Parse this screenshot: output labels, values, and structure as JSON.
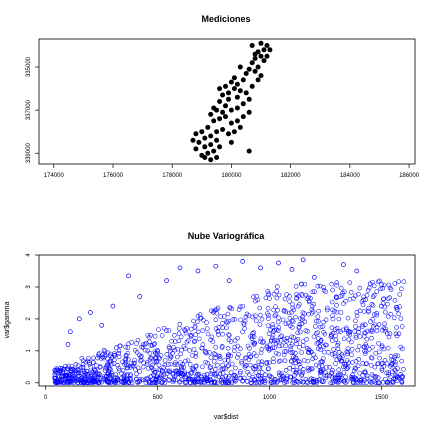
{
  "chart_data": [
    {
      "type": "scatter",
      "title": "Mediciones",
      "xlabel": "",
      "ylabel": "",
      "xlim": [
        173500,
        186200
      ],
      "ylim": [
        339500,
        333700
      ],
      "x_ticks": [
        174000,
        176000,
        178000,
        180000,
        182000,
        184000,
        186000
      ],
      "x_tick_labels": [
        "174000",
        "176000",
        "178000",
        "180000",
        "182000",
        "184000",
        "186000"
      ],
      "y_ticks": [
        335000,
        337000,
        339000
      ],
      "y_tick_labels": [
        "335000",
        "337000",
        "339000"
      ],
      "marker": "filled-circle",
      "color": "#000000",
      "note": "y axis shown with increasing values downward",
      "series": [
        {
          "points": [
            [
              181000,
              333900
            ],
            [
              181200,
              334000
            ],
            [
              181100,
              334200
            ],
            [
              180900,
              334300
            ],
            [
              181300,
              334200
            ],
            [
              181000,
              334500
            ],
            [
              180800,
              334600
            ],
            [
              180700,
              334800
            ],
            [
              181100,
              334700
            ],
            [
              180900,
              335000
            ],
            [
              180600,
              335100
            ],
            [
              180500,
              335300
            ],
            [
              180800,
              335200
            ],
            [
              180400,
              335600
            ],
            [
              180200,
              335800
            ],
            [
              180000,
              335700
            ],
            [
              179800,
              335900
            ],
            [
              179600,
              336000
            ],
            [
              179700,
              336300
            ],
            [
              179900,
              336200
            ],
            [
              180100,
              336000
            ],
            [
              180300,
              336100
            ],
            [
              180500,
              336200
            ],
            [
              180700,
              335900
            ],
            [
              180900,
              335600
            ],
            [
              180600,
              336500
            ],
            [
              180400,
              336700
            ],
            [
              180200,
              336900
            ],
            [
              180000,
              337000
            ],
            [
              179800,
              336800
            ],
            [
              179600,
              336600
            ],
            [
              179500,
              337000
            ],
            [
              179300,
              337200
            ],
            [
              179400,
              337500
            ],
            [
              179600,
              337400
            ],
            [
              179800,
              337300
            ],
            [
              180000,
              337600
            ],
            [
              180200,
              337500
            ],
            [
              180400,
              337300
            ],
            [
              180600,
              337100
            ],
            [
              179200,
              337800
            ],
            [
              179000,
              338000
            ],
            [
              178800,
              338100
            ],
            [
              179100,
              338300
            ],
            [
              179300,
              338200
            ],
            [
              179500,
              338000
            ],
            [
              179700,
              337900
            ],
            [
              179900,
              338100
            ],
            [
              180100,
              338000
            ],
            [
              180300,
              337800
            ],
            [
              178900,
              338500
            ],
            [
              179100,
              338700
            ],
            [
              179300,
              338600
            ],
            [
              179500,
              338400
            ],
            [
              179200,
              339000
            ],
            [
              179000,
              339100
            ],
            [
              179300,
              339300
            ],
            [
              179500,
              339200
            ],
            [
              178800,
              338800
            ],
            [
              180600,
              338900
            ],
            [
              180700,
              334000
            ],
            [
              181200,
              334500
            ],
            [
              181000,
              335400
            ],
            [
              180200,
              336400
            ],
            [
              179900,
              336500
            ],
            [
              179400,
              336900
            ],
            [
              179700,
              337100
            ],
            [
              178700,
              338400
            ],
            [
              179600,
              338700
            ],
            [
              180000,
              338500
            ],
            [
              179400,
              338900
            ],
            [
              179100,
              339200
            ],
            [
              180800,
              334400
            ],
            [
              180300,
              335000
            ],
            [
              180100,
              335500
            ]
          ]
        }
      ]
    },
    {
      "type": "scatter",
      "title": "Nube Variográfica",
      "xlabel": "var$dist",
      "ylabel": "var$gamma",
      "xlim": [
        -30,
        1650
      ],
      "ylim": [
        -0.1,
        4.0
      ],
      "x_ticks": [
        0,
        500,
        1000,
        1500
      ],
      "x_tick_labels": [
        "0",
        "500",
        "1000",
        "1500"
      ],
      "y_ticks": [
        0,
        1,
        2,
        3,
        4
      ],
      "y_tick_labels": [
        "0",
        "1",
        "2",
        "3",
        "4"
      ],
      "marker": "open-circle",
      "color": "#0000ff",
      "series": [
        {
          "points": [
            [
              1150,
              3.85
            ],
            [
              880,
              3.8
            ],
            [
              1040,
              3.75
            ],
            [
              760,
              3.65
            ],
            [
              1330,
              3.7
            ],
            [
              1390,
              3.5
            ],
            [
              600,
              3.6
            ],
            [
              680,
              3.5
            ],
            [
              1100,
              3.55
            ],
            [
              960,
              3.6
            ],
            [
              370,
              3.35
            ],
            [
              540,
              3.2
            ],
            [
              300,
              2.4
            ],
            [
              420,
              2.7
            ],
            [
              200,
              2.2
            ],
            [
              150,
              2.0
            ],
            [
              1450,
              3.1
            ],
            [
              1200,
              3.3
            ],
            [
              820,
              3.2
            ],
            [
              250,
              1.8
            ],
            [
              100,
              1.2
            ],
            [
              110,
              1.6
            ],
            [
              1500,
              2.4
            ],
            [
              1570,
              2.3
            ]
          ]
        }
      ]
    }
  ]
}
